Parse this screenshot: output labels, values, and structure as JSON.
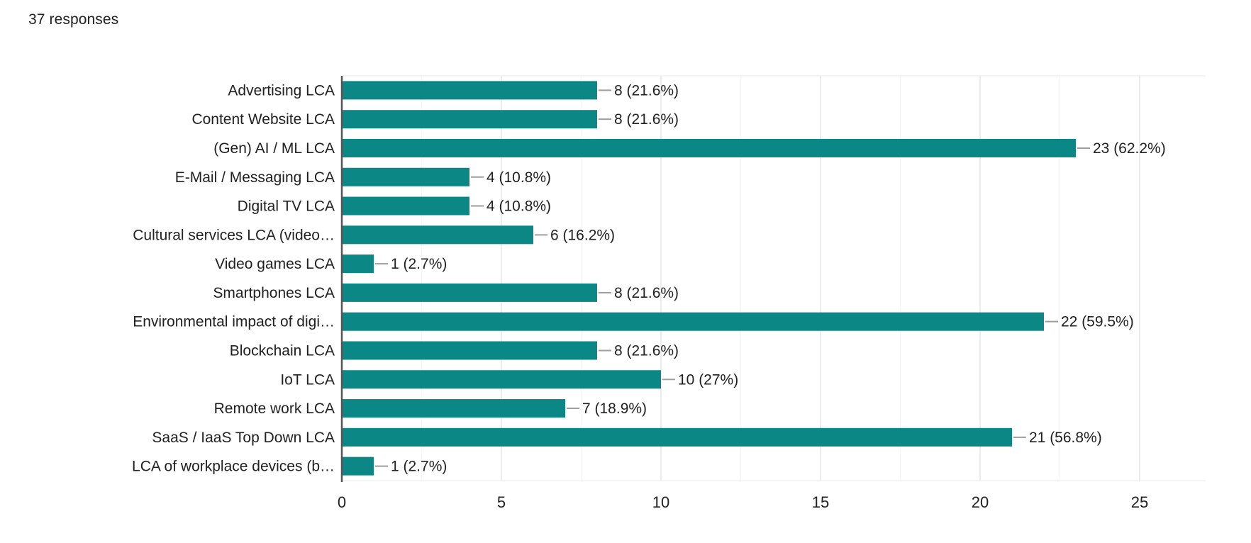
{
  "header": {
    "responses_label": "37 responses"
  },
  "chart_data": {
    "type": "bar",
    "orientation": "horizontal",
    "title": "",
    "xlabel": "",
    "ylabel": "",
    "xlim": [
      0,
      25
    ],
    "x_ticks": [
      0,
      5,
      10,
      15,
      20,
      25
    ],
    "minor_grid_step": 2.5,
    "grid": "vertical-on",
    "legend": "none",
    "total_responses": 37,
    "categories": [
      "Advertising LCA",
      "Content Website LCA",
      "(Gen) AI / ML LCA",
      "E-Mail / Messaging LCA",
      "Digital TV LCA",
      "Cultural services LCA (video…",
      "Video games LCA",
      "Smartphones LCA",
      "Environmental impact of digi…",
      "Blockchain LCA",
      "IoT LCA",
      "Remote work LCA",
      "SaaS / IaaS Top Down LCA",
      "LCA of workplace devices (b…"
    ],
    "values": [
      8,
      8,
      23,
      4,
      4,
      6,
      1,
      8,
      22,
      8,
      10,
      7,
      21,
      1
    ],
    "value_labels": [
      "8 (21.6%)",
      "8 (21.6%)",
      "23 (62.2%)",
      "4 (10.8%)",
      "4 (10.8%)",
      "6 (16.2%)",
      "1 (2.7%)",
      "8 (21.6%)",
      "22 (59.5%)",
      "8 (21.6%)",
      "10 (27%)",
      "7 (18.9%)",
      "21 (56.8%)",
      "1 (2.7%)"
    ],
    "colors": {
      "bar": "#0b8886",
      "text": "#212121",
      "axis_line": "#555555",
      "connector": "#9e9e9e",
      "gridline_major": "#ececec",
      "gridline_minor": "#f6f6f6",
      "plot_border": "#e8e8e8"
    }
  }
}
